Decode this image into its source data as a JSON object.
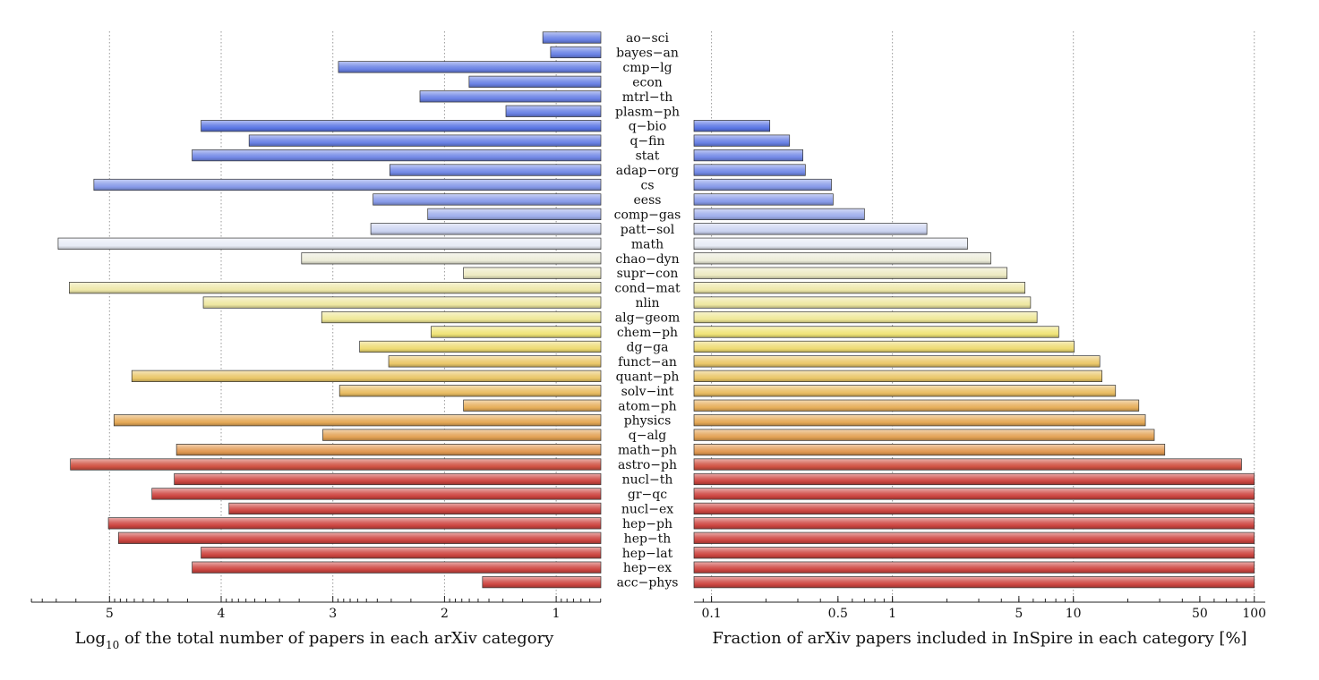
{
  "chart_data": [
    {
      "type": "bar",
      "orientation": "horizontal",
      "direction": "reversed",
      "categories": [
        "ao-sci",
        "bayes-an",
        "cmp-lg",
        "econ",
        "mtrl-th",
        "plasm-ph",
        "q-bio",
        "q-fin",
        "stat",
        "adap-org",
        "cs",
        "eess",
        "comp-gas",
        "patt-sol",
        "math",
        "chao-dyn",
        "supr-con",
        "cond-mat",
        "nlin",
        "alg-geom",
        "chem-ph",
        "dg-ga",
        "funct-an",
        "quant-ph",
        "solv-int",
        "atom-ph",
        "physics",
        "q-alg",
        "math-ph",
        "astro-ph",
        "nucl-th",
        "gr-qc",
        "nucl-ex",
        "hep-ph",
        "hep-th",
        "hep-lat",
        "hep-ex",
        "acc-phys"
      ],
      "values": [
        1.12,
        1.05,
        2.95,
        1.78,
        2.22,
        1.45,
        4.18,
        3.75,
        4.26,
        2.49,
        5.14,
        2.64,
        2.15,
        2.66,
        5.46,
        3.28,
        1.83,
        5.36,
        4.16,
        3.1,
        2.12,
        2.76,
        2.5,
        4.8,
        2.94,
        1.83,
        4.96,
        3.09,
        4.4,
        5.35,
        4.42,
        4.62,
        3.93,
        5.01,
        4.92,
        4.18,
        4.26,
        1.66
      ],
      "xlabel_main": "Log",
      "xlabel_sub": "10",
      "xlabel_rest": " of the total number of papers in each arXiv category",
      "xlim": [
        5.7,
        0.6
      ],
      "ticks": [
        5,
        4,
        3,
        2,
        1
      ],
      "tick_labels": [
        "5",
        "4",
        "3",
        "2",
        "1"
      ],
      "grid": true
    },
    {
      "type": "bar",
      "orientation": "horizontal",
      "scale": "log",
      "categories": [
        "ao-sci",
        "bayes-an",
        "cmp-lg",
        "econ",
        "mtrl-th",
        "plasm-ph",
        "q-bio",
        "q-fin",
        "stat",
        "adap-org",
        "cs",
        "eess",
        "comp-gas",
        "patt-sol",
        "math",
        "chao-dyn",
        "supr-con",
        "cond-mat",
        "nlin",
        "alg-geom",
        "chem-ph",
        "dg-ga",
        "funct-an",
        "quant-ph",
        "solv-int",
        "atom-ph",
        "physics",
        "q-alg",
        "math-ph",
        "astro-ph",
        "nucl-th",
        "gr-qc",
        "nucl-ex",
        "hep-ph",
        "hep-th",
        "hep-lat",
        "hep-ex",
        "acc-phys"
      ],
      "values": [
        0,
        0,
        0,
        0,
        0,
        0,
        0.21,
        0.27,
        0.32,
        0.33,
        0.46,
        0.47,
        0.7,
        1.55,
        2.6,
        3.5,
        4.3,
        5.4,
        5.8,
        6.3,
        8.3,
        10.1,
        14,
        14.4,
        17.1,
        23,
        25,
        28,
        32,
        85,
        100,
        100,
        100,
        100,
        100,
        100,
        100,
        100
      ],
      "xlabel": "Fraction of arXiv papers included in InSpire in each category [%]",
      "xlim": [
        0.08,
        115
      ],
      "ticks": [
        0.1,
        0.5,
        1,
        5,
        10,
        50,
        100
      ],
      "tick_labels": [
        "0.1",
        "0.5",
        "1",
        "5",
        "10",
        "50",
        "100"
      ],
      "grid": true
    }
  ]
}
